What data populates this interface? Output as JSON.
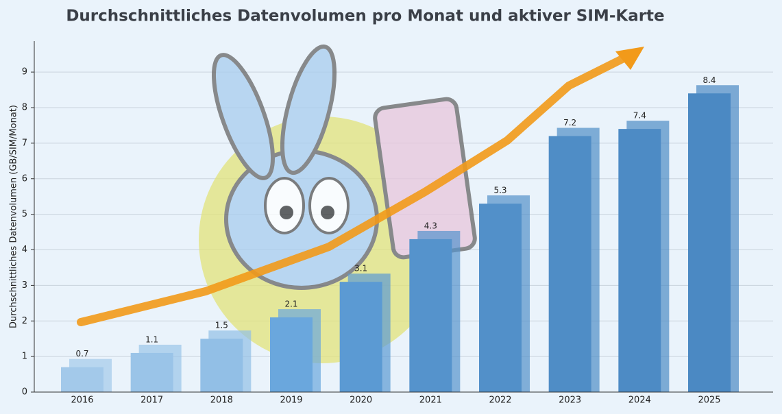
{
  "chart_data": {
    "type": "bar",
    "title": "Durchschnittliches Datenvolumen pro Monat und aktiver SIM-Karte",
    "y_label": "Durchschnittliches Datenvolumen (GB/SIM/Monat)",
    "categories": [
      "2016",
      "2017",
      "2018",
      "2019",
      "2020",
      "2021",
      "2022",
      "2023",
      "2024",
      "2025"
    ],
    "values": [
      0.7,
      1.1,
      1.5,
      2.1,
      3.1,
      4.3,
      5.3,
      7.2,
      7.4,
      8.4
    ],
    "colors": [
      "#a3c9ea",
      "#9ac4e8",
      "#92bfe6",
      "#6aa7dd",
      "#5b9ad3",
      "#5593cc",
      "#5290c9",
      "#4f8dc6",
      "#4d8bc5",
      "#4b89c3"
    ],
    "ylim": [
      0,
      9.87
    ],
    "yticks": [
      0,
      1,
      2,
      3,
      4,
      5,
      6,
      7,
      8,
      9
    ],
    "grid": true
  }
}
